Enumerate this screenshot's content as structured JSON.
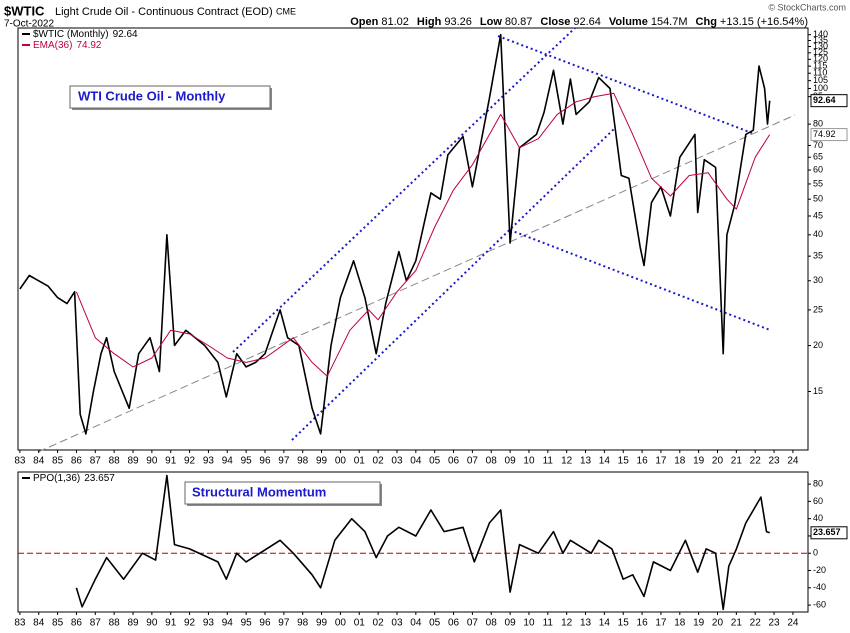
{
  "chart_data": [
    {
      "type": "line",
      "title": "$WTIC",
      "subtitle": "Light Crude Oil - Continuous Contract (EOD)",
      "exchange": "CME",
      "date": "7-Oct-2022",
      "watermark": "© StockCharts.com",
      "quote": [
        {
          "label": "Open",
          "value": "81.02"
        },
        {
          "label": "High",
          "value": "93.26"
        },
        {
          "label": "Low",
          "value": "80.87"
        },
        {
          "label": "Close",
          "value": "92.64"
        },
        {
          "label": "Volume",
          "value": "154.7M"
        },
        {
          "label": "Chg",
          "value": "+13.15 (+16.54%)"
        }
      ],
      "annotation": "WTI Crude Oil - Monthly",
      "log_scale": true,
      "series": [
        {
          "name": "$WTIC (Monthly)",
          "color": "#000000",
          "x": [
            1983.0,
            1983.5,
            1984.0,
            1984.5,
            1985.0,
            1985.5,
            1985.9,
            1986.2,
            1986.5,
            1986.9,
            1987.3,
            1987.6,
            1988.0,
            1988.8,
            1989.3,
            1989.9,
            1990.4,
            1990.8,
            1991.2,
            1991.8,
            1992.3,
            1992.8,
            1993.5,
            1993.95,
            1994.5,
            1995.0,
            1995.5,
            1996.0,
            1996.8,
            1997.2,
            1997.8,
            1998.5,
            1998.95,
            1999.5,
            2000.0,
            2000.7,
            2001.3,
            2001.9,
            2002.4,
            2003.1,
            2003.5,
            2004.0,
            2004.8,
            2005.3,
            2005.7,
            2006.5,
            2007.0,
            2007.9,
            2008.5,
            2009.0,
            2009.5,
            2010.4,
            2010.8,
            2011.3,
            2011.8,
            2012.2,
            2012.5,
            2013.2,
            2013.7,
            2014.3,
            2014.9,
            2015.3,
            2015.9,
            2016.1,
            2016.5,
            2017.0,
            2017.5,
            2018.0,
            2018.8,
            2018.95,
            2019.3,
            2019.9,
            2020.3,
            2020.5,
            2020.9,
            2021.5,
            2021.9,
            2022.2,
            2022.5,
            2022.65,
            2022.77
          ],
          "values": [
            28.5,
            31,
            30,
            29,
            27,
            26,
            28,
            13,
            11.5,
            15,
            19,
            21,
            17,
            13.5,
            19,
            21,
            17,
            40,
            20,
            22,
            21,
            20,
            18,
            14.5,
            19,
            17.5,
            18,
            19,
            25,
            21,
            20,
            13.5,
            11.5,
            20,
            27,
            34,
            27,
            19,
            26,
            36,
            30,
            34,
            52,
            50,
            66,
            74,
            54,
            94,
            140,
            38,
            69,
            75,
            86,
            112,
            80,
            106,
            85,
            92,
            107,
            100,
            58,
            57,
            37,
            33,
            49,
            54,
            45,
            65,
            75,
            46,
            64,
            61,
            19,
            40,
            48,
            75,
            77,
            115,
            100,
            80,
            92.64
          ]
        },
        {
          "name": "EMA(36)",
          "color": "#c0003c",
          "x": [
            1986.0,
            1987.0,
            1988.0,
            1989.0,
            1990.0,
            1991.0,
            1992.0,
            1993.0,
            1994.0,
            1995.0,
            1996.0,
            1997.5,
            1998.5,
            1999.3,
            2000.5,
            2001.5,
            2002.0,
            2003.0,
            2004.0,
            2005.0,
            2006.0,
            2007.0,
            2008.5,
            2009.5,
            2010.5,
            2011.5,
            2012.5,
            2013.5,
            2014.5,
            2015.5,
            2016.5,
            2017.5,
            2018.5,
            2019.5,
            2020.5,
            2021.0,
            2022.0,
            2022.77
          ],
          "values": [
            28,
            21,
            19,
            17.5,
            18.5,
            22,
            21.5,
            20,
            18.5,
            18,
            18.5,
            21,
            18,
            16.5,
            22,
            25,
            23.5,
            28,
            32,
            42,
            53,
            62,
            85,
            69,
            73,
            85,
            92,
            95,
            97,
            75,
            57,
            51,
            58,
            59,
            50,
            47,
            65,
            74.92
          ]
        }
      ],
      "xlim": [
        1982.9,
        2024.8
      ],
      "xticks": [
        {
          "value": 1983,
          "label": "83"
        },
        {
          "value": 1984,
          "label": "84"
        },
        {
          "value": 1985,
          "label": "85"
        },
        {
          "value": 1986,
          "label": "86"
        },
        {
          "value": 1987,
          "label": "87"
        },
        {
          "value": 1988,
          "label": "88"
        },
        {
          "value": 1989,
          "label": "89"
        },
        {
          "value": 1990,
          "label": "90"
        },
        {
          "value": 1991,
          "label": "91"
        },
        {
          "value": 1992,
          "label": "92"
        },
        {
          "value": 1993,
          "label": "93"
        },
        {
          "value": 1994,
          "label": "94"
        },
        {
          "value": 1995,
          "label": "95"
        },
        {
          "value": 1996,
          "label": "96"
        },
        {
          "value": 1997,
          "label": "97"
        },
        {
          "value": 1998,
          "label": "98"
        },
        {
          "value": 1999,
          "label": "99"
        },
        {
          "value": 2000,
          "label": "00"
        },
        {
          "value": 2001,
          "label": "01"
        },
        {
          "value": 2002,
          "label": "02"
        },
        {
          "value": 2003,
          "label": "03"
        },
        {
          "value": 2004,
          "label": "04"
        },
        {
          "value": 2005,
          "label": "05"
        },
        {
          "value": 2006,
          "label": "06"
        },
        {
          "value": 2007,
          "label": "07"
        },
        {
          "value": 2008,
          "label": "08"
        },
        {
          "value": 2009,
          "label": "09"
        },
        {
          "value": 2010,
          "label": "10"
        },
        {
          "value": 2011,
          "label": "11"
        },
        {
          "value": 2012,
          "label": "12"
        },
        {
          "value": 2013,
          "label": "13"
        },
        {
          "value": 2014,
          "label": "14"
        },
        {
          "value": 2015,
          "label": "15"
        },
        {
          "value": 2016,
          "label": "16"
        },
        {
          "value": 2017,
          "label": "17"
        },
        {
          "value": 2018,
          "label": "18"
        },
        {
          "value": 2019,
          "label": "19"
        },
        {
          "value": 2020,
          "label": "20"
        },
        {
          "value": 2021,
          "label": "21"
        },
        {
          "value": 2022,
          "label": "22"
        },
        {
          "value": 2023,
          "label": "23"
        },
        {
          "value": 2024,
          "label": "24"
        }
      ],
      "ylim": [
        10.4,
        146
      ],
      "yticks": [
        15,
        20,
        25,
        30,
        35,
        40,
        45,
        50,
        55,
        60,
        65,
        70,
        80,
        95,
        100,
        105,
        110,
        115,
        120,
        125,
        130,
        135,
        140
      ]
    },
    {
      "type": "line",
      "annotation": "Structural Momentum",
      "series": [
        {
          "name": "PPO(1,36)",
          "color": "#000000",
          "x": [
            1986.0,
            1986.3,
            1987.0,
            1987.6,
            1988.5,
            1989.5,
            1990.2,
            1990.8,
            1991.2,
            1992.0,
            1993.5,
            1993.95,
            1994.5,
            1995.0,
            1996.8,
            1997.5,
            1998.5,
            1998.95,
            1999.7,
            2000.6,
            2001.3,
            2001.9,
            2002.5,
            2003.1,
            2004.0,
            2004.8,
            2005.5,
            2006.5,
            2007.1,
            2007.9,
            2008.5,
            2009.0,
            2009.5,
            2010.5,
            2011.3,
            2011.8,
            2012.2,
            2013.3,
            2013.7,
            2014.4,
            2015.0,
            2015.5,
            2016.1,
            2016.6,
            2017.5,
            2018.3,
            2018.95,
            2019.4,
            2019.9,
            2020.3,
            2020.6,
            2021.0,
            2021.5,
            2022.3,
            2022.6,
            2022.77
          ],
          "values": [
            -40,
            -62,
            -30,
            -5,
            -30,
            0,
            -8,
            90,
            10,
            5,
            -10,
            -30,
            0,
            -10,
            15,
            0,
            -25,
            -40,
            15,
            40,
            25,
            -5,
            20,
            30,
            20,
            50,
            25,
            30,
            -10,
            35,
            50,
            -45,
            10,
            0,
            25,
            0,
            15,
            0,
            15,
            5,
            -30,
            -25,
            -50,
            -10,
            -20,
            15,
            -22,
            5,
            0,
            -65,
            -15,
            5,
            35,
            65,
            25,
            23.657
          ]
        }
      ],
      "xlim": [
        1982.9,
        2024.8
      ],
      "xticks": [
        {
          "value": 1983,
          "label": "83"
        },
        {
          "value": 1984,
          "label": "84"
        },
        {
          "value": 1985,
          "label": "85"
        },
        {
          "value": 1986,
          "label": "86"
        },
        {
          "value": 1987,
          "label": "87"
        },
        {
          "value": 1988,
          "label": "88"
        },
        {
          "value": 1989,
          "label": "89"
        },
        {
          "value": 1990,
          "label": "90"
        },
        {
          "value": 1991,
          "label": "91"
        },
        {
          "value": 1992,
          "label": "92"
        },
        {
          "value": 1993,
          "label": "93"
        },
        {
          "value": 1994,
          "label": "94"
        },
        {
          "value": 1995,
          "label": "95"
        },
        {
          "value": 1996,
          "label": "96"
        },
        {
          "value": 1997,
          "label": "97"
        },
        {
          "value": 1998,
          "label": "98"
        },
        {
          "value": 1999,
          "label": "99"
        },
        {
          "value": 2000,
          "label": "00"
        },
        {
          "value": 2001,
          "label": "01"
        },
        {
          "value": 2002,
          "label": "02"
        },
        {
          "value": 2003,
          "label": "03"
        },
        {
          "value": 2004,
          "label": "04"
        },
        {
          "value": 2005,
          "label": "05"
        },
        {
          "value": 2006,
          "label": "06"
        },
        {
          "value": 2007,
          "label": "07"
        },
        {
          "value": 2008,
          "label": "08"
        },
        {
          "value": 2009,
          "label": "09"
        },
        {
          "value": 2010,
          "label": "10"
        },
        {
          "value": 2011,
          "label": "11"
        },
        {
          "value": 2012,
          "label": "12"
        },
        {
          "value": 2013,
          "label": "13"
        },
        {
          "value": 2014,
          "label": "14"
        },
        {
          "value": 2015,
          "label": "15"
        },
        {
          "value": 2016,
          "label": "16"
        },
        {
          "value": 2017,
          "label": "17"
        },
        {
          "value": 2018,
          "label": "18"
        },
        {
          "value": 2019,
          "label": "19"
        },
        {
          "value": 2020,
          "label": "20"
        },
        {
          "value": 2021,
          "label": "21"
        },
        {
          "value": 2022,
          "label": "22"
        },
        {
          "value": 2023,
          "label": "23"
        },
        {
          "value": 2024,
          "label": "24"
        }
      ],
      "ylim": [
        -68,
        94
      ],
      "yticks": [
        -60,
        -40,
        -20,
        0,
        20,
        40,
        60,
        80
      ],
      "zero_line_color": "#c00000"
    }
  ]
}
